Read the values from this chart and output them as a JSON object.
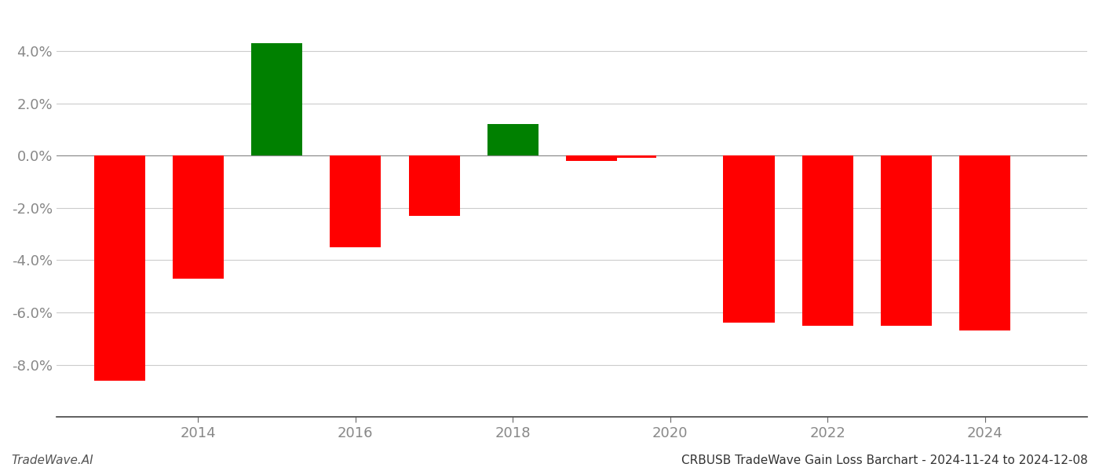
{
  "years": [
    2013,
    2014,
    2015,
    2016,
    2017,
    2018,
    2019,
    2019.5,
    2021,
    2022,
    2023,
    2024
  ],
  "values": [
    -0.086,
    -0.047,
    0.043,
    -0.035,
    -0.023,
    0.012,
    -0.002,
    -0.001,
    -0.064,
    -0.065,
    -0.065,
    -0.067
  ],
  "bar_colors": [
    "#ff0000",
    "#ff0000",
    "#008000",
    "#ff0000",
    "#ff0000",
    "#008000",
    "#ff0000",
    "#ff0000",
    "#ff0000",
    "#ff0000",
    "#ff0000",
    "#ff0000"
  ],
  "background_color": "#ffffff",
  "grid_color": "#cccccc",
  "text_color": "#888888",
  "bottom_left_text": "TradeWave.AI",
  "bottom_right_text": "CRBUSB TradeWave Gain Loss Barchart - 2024-11-24 to 2024-12-08",
  "ylim": [
    -0.1,
    0.055
  ],
  "yticks": [
    -0.08,
    -0.06,
    -0.04,
    -0.02,
    0.0,
    0.02,
    0.04
  ],
  "xlim": [
    2012.2,
    2025.3
  ],
  "xticks": [
    2014,
    2016,
    2018,
    2020,
    2022,
    2024
  ],
  "bar_width": 0.65
}
